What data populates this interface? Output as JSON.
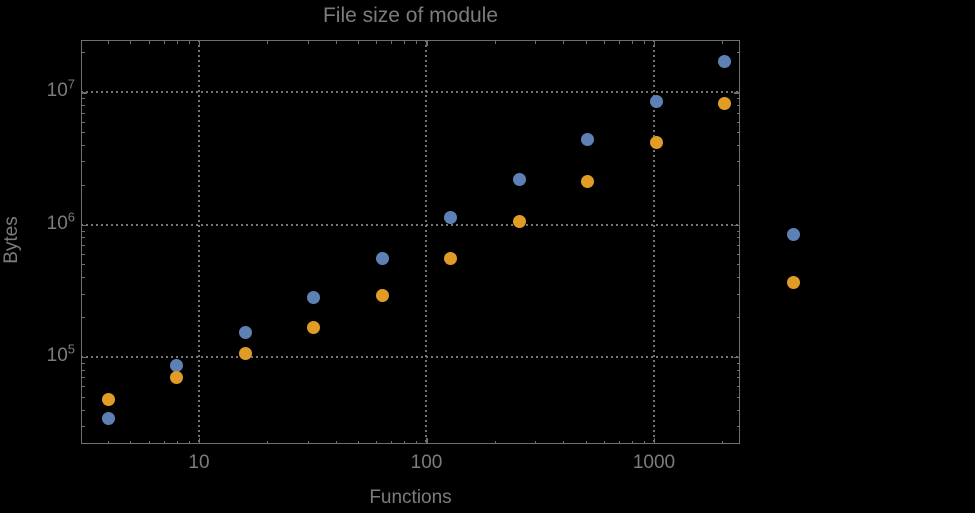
{
  "chart_data": {
    "type": "scatter",
    "title": "File size of module",
    "xlabel": "Functions",
    "ylabel": "Bytes",
    "xscale": "log",
    "yscale": "log",
    "xlim": [
      3.03,
      2388
    ],
    "ylim": [
      22000,
      24840000
    ],
    "grid": "dotted gridlines at major ticks",
    "legend": "none",
    "marker_size_px": 13,
    "x": [
      4,
      8,
      16,
      32,
      64,
      128,
      256,
      512,
      1024,
      2048,
      4096
    ],
    "series": [
      {
        "name": "series-1-blue",
        "color": "#5E81B5",
        "values": [
          34000,
          86000,
          152000,
          283000,
          556000,
          1130000,
          2200000,
          4400000,
          8500000,
          17200000,
          840000
        ]
      },
      {
        "name": "series-2-orange",
        "color": "#E09C24",
        "values": [
          48000,
          70000,
          106000,
          168000,
          292000,
          556000,
          1050000,
          2100000,
          4150000,
          8300000,
          365000
        ]
      }
    ],
    "x_ticks": [
      {
        "value": 10,
        "label": "10"
      },
      {
        "value": 100,
        "label": "100"
      },
      {
        "value": 1000,
        "label": "1000"
      }
    ],
    "y_ticks": [
      {
        "value": 100000,
        "mantissa": "10",
        "exponent": "5"
      },
      {
        "value": 1000000,
        "mantissa": "10",
        "exponent": "6"
      },
      {
        "value": 10000000,
        "mantissa": "10",
        "exponent": "7"
      }
    ],
    "colors": {
      "background": "#000000",
      "frame": "#6f6f6f",
      "grid": "#757575",
      "text": "#7c7c7c"
    }
  }
}
